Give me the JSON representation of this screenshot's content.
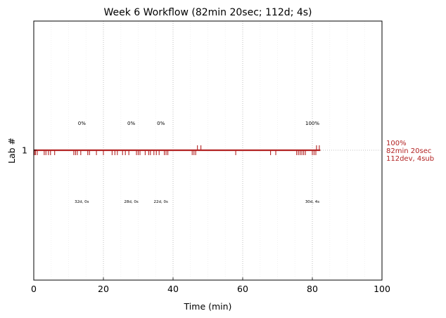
{
  "chart_data": {
    "type": "timeline",
    "title": "Week 6 Workflow (82min 20sec; 112d; 4s)",
    "xlabel": "Time (min)",
    "ylabel": "Lab #",
    "xlim": [
      0,
      100
    ],
    "xticks": [
      0,
      20,
      40,
      60,
      80,
      100
    ],
    "x_minor_grid_step": 5,
    "yticks": [
      "1"
    ],
    "grid": true,
    "series": [
      {
        "row": "1",
        "timeline_end": 82.3,
        "dev_events": [
          0.2,
          0.5,
          1.0,
          3.0,
          3.5,
          4.2,
          4.8,
          6.0,
          11.5,
          12.0,
          12.5,
          13.5,
          15.5,
          16.0,
          18.0,
          20.0,
          22.5,
          23.3,
          24.0,
          25.5,
          26.3,
          27.3,
          29.5,
          30.0,
          30.5,
          32.0,
          33.0,
          33.5,
          34.5,
          35.2,
          36.0,
          37.5,
          38.0,
          38.5,
          45.5,
          46.0,
          46.5,
          58.0,
          68.0,
          69.5,
          75.5,
          76.0,
          76.5,
          77.0,
          77.5,
          78.0,
          80.0,
          80.5,
          81.0
        ],
        "sub_events": [
          47.0,
          48.0,
          81.2,
          82.0
        ],
        "segments": [
          {
            "x": 13.8,
            "percent": "0%",
            "summary": "32d, 0s"
          },
          {
            "x": 28.0,
            "percent": "0%",
            "summary": "28d, 0s"
          },
          {
            "x": 36.5,
            "percent": "0%",
            "summary": "22d, 0s"
          },
          {
            "x": 80.0,
            "percent": "100%",
            "summary": "30d, 4s"
          }
        ],
        "row_summary": [
          "100%",
          "82min 20sec",
          "112dev, 4sub"
        ]
      }
    ],
    "color": "#b22222"
  }
}
